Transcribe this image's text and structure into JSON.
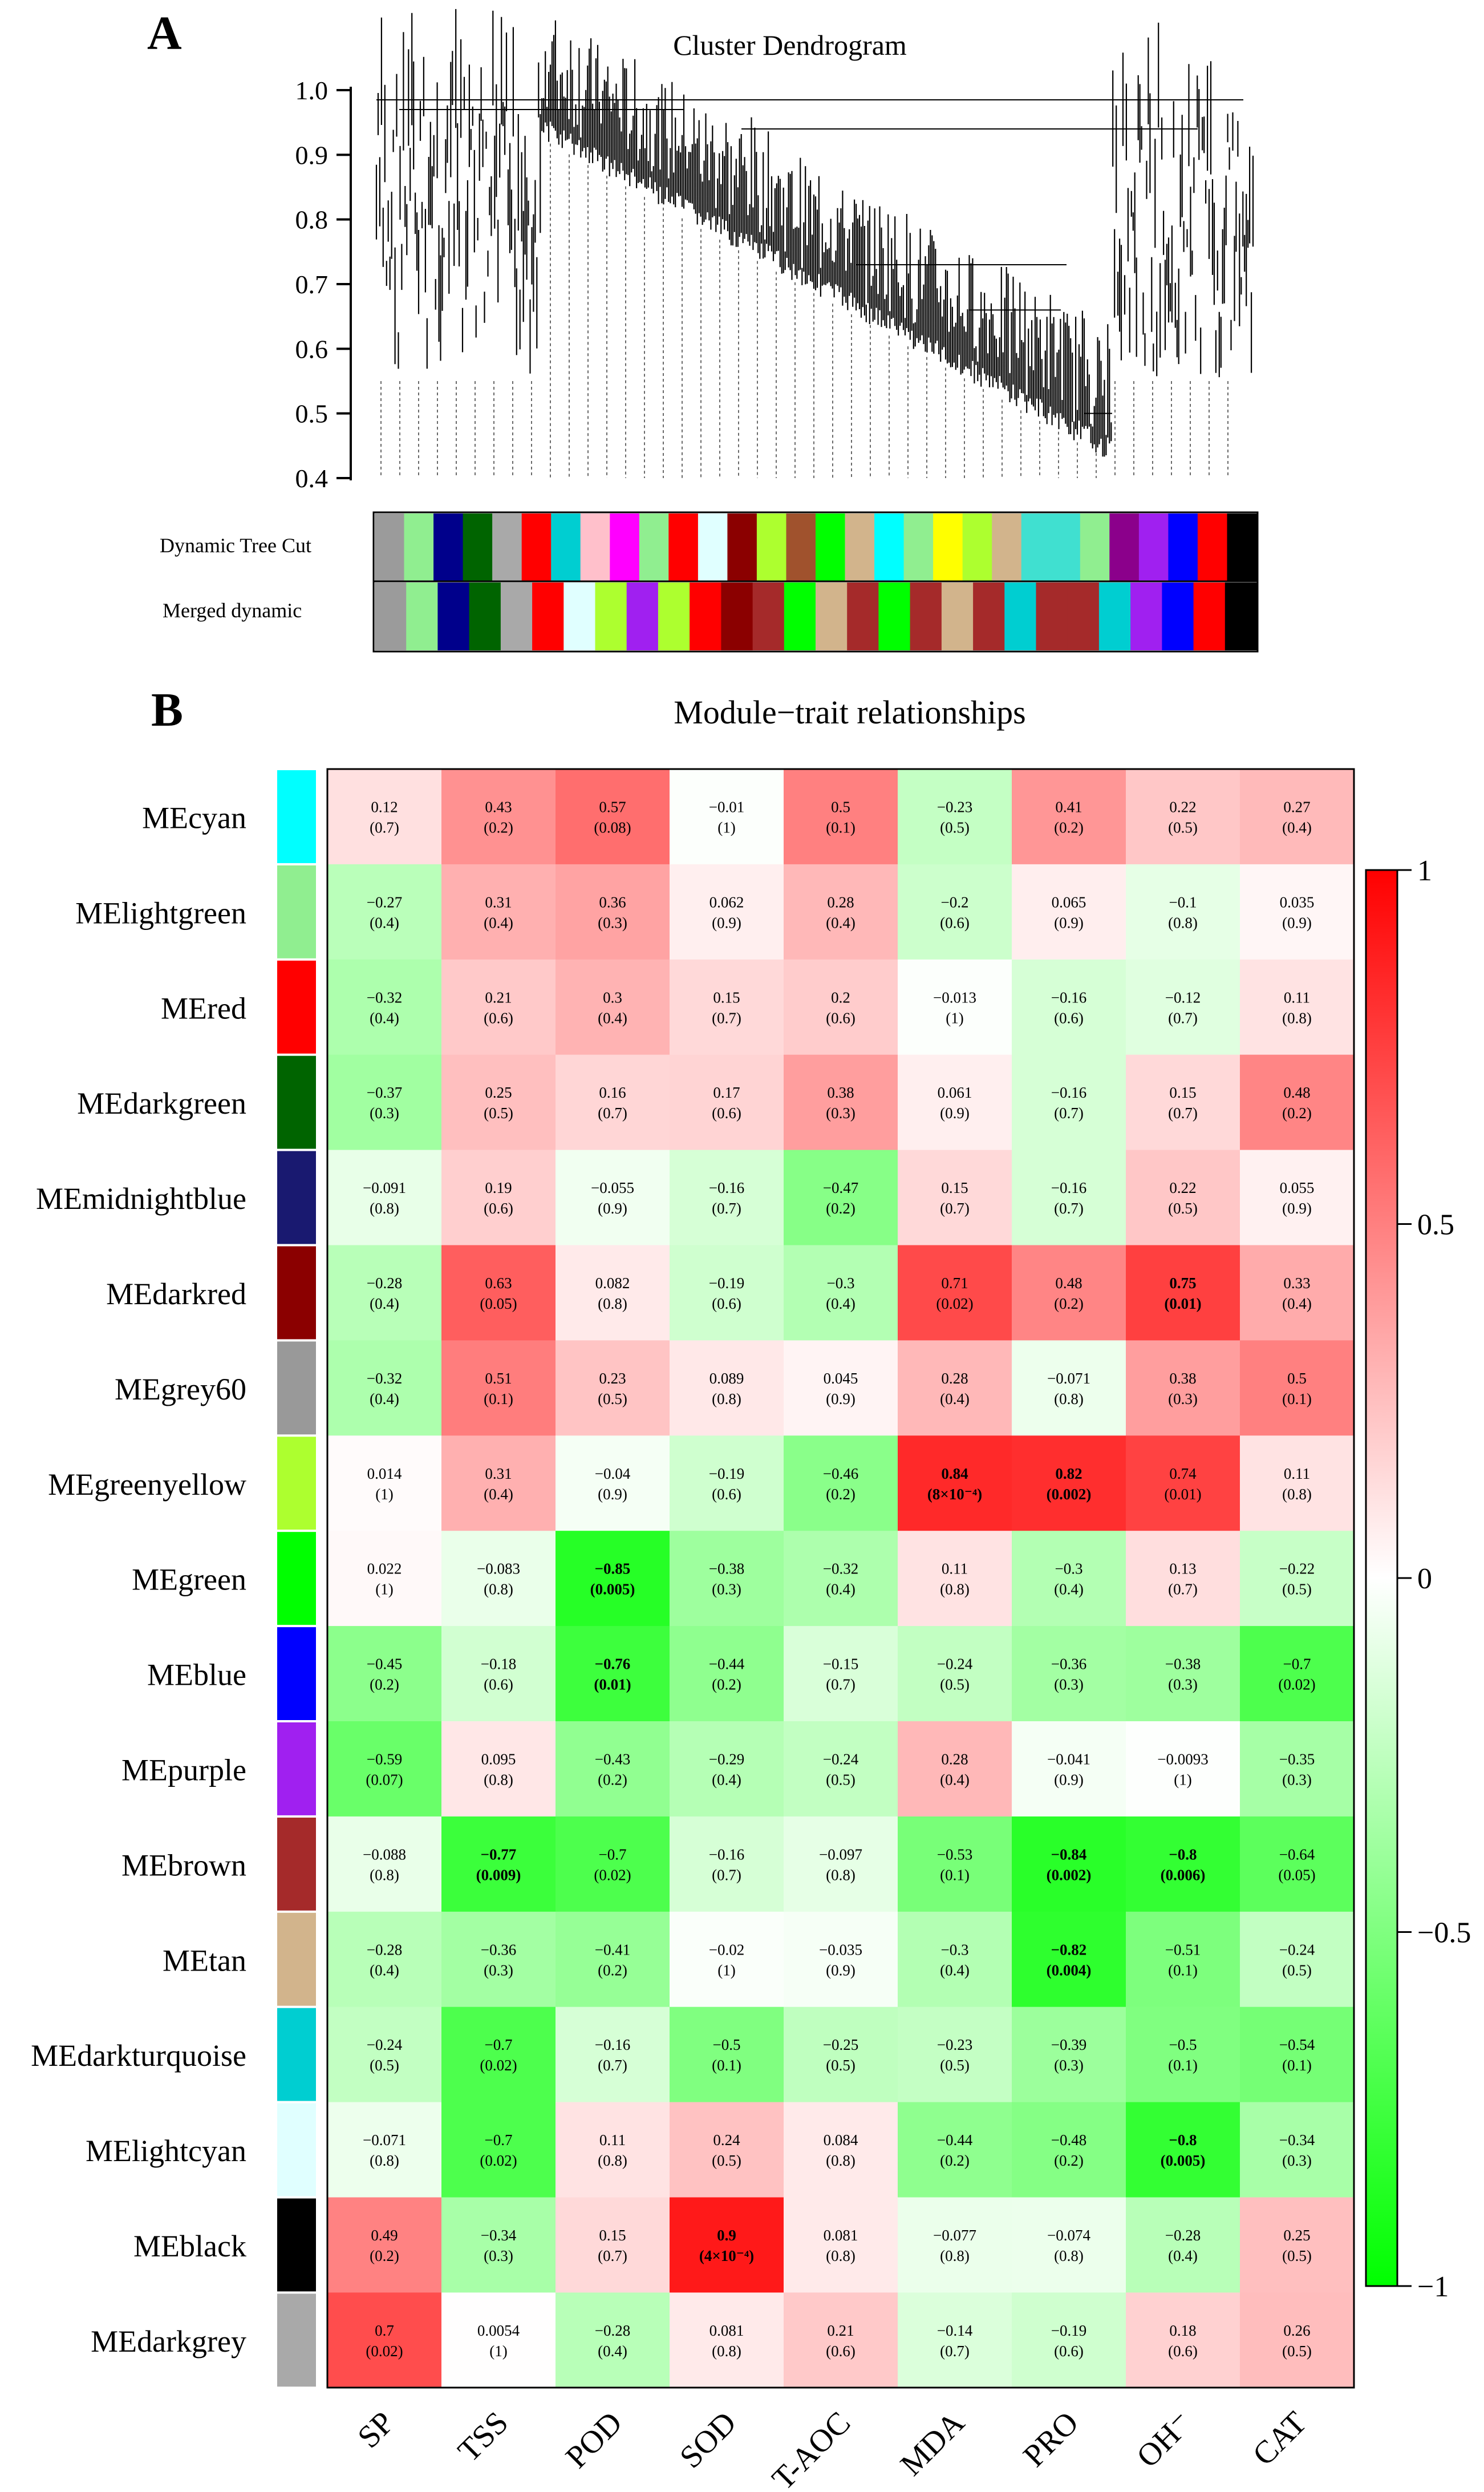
{
  "panel_a": {
    "panel_label": "A",
    "chart_data": {
      "type": "dendrogram",
      "title": "Cluster Dendrogram",
      "yticks": [
        "1.0",
        "0.9",
        "0.8",
        "0.7",
        "0.6",
        "0.5",
        "0.4"
      ],
      "ylim": [
        0.4,
        1.0
      ],
      "row_labels": [
        "Dynamic Tree Cut",
        "Merged dynamic"
      ],
      "dynamic_colors": [
        "#9b9b9b",
        "#90ee90",
        "#00008b",
        "#006400",
        "#a9a9a9",
        "#ff0000",
        "#00ced1",
        "#ffc0cb",
        "#ff00ff",
        "#90ee90",
        "#ff0000",
        "#e0ffff",
        "#8b0000",
        "#adff2f",
        "#a0522d",
        "#00ff00",
        "#d2b48c",
        "#00ffff",
        "#90ee90",
        "#ffff00",
        "#adff2f",
        "#d2b48c",
        "#40e0d0",
        "#40e0d0",
        "#90ee90",
        "#8b008b",
        "#a020f0",
        "#0000ff",
        "#ff0000",
        "#000000"
      ],
      "merged_colors": [
        "#9b9b9b",
        "#90ee90",
        "#00008b",
        "#006400",
        "#a9a9a9",
        "#ff0000",
        "#e0ffff",
        "#adff2f",
        "#a020f0",
        "#adff2f",
        "#ff0000",
        "#8b0000",
        "#a52a2a",
        "#00ff00",
        "#d2b48c",
        "#a52a2a",
        "#00ff00",
        "#a52a2a",
        "#d2b48c",
        "#a52a2a",
        "#00ced1",
        "#a52a2a",
        "#a52a2a",
        "#00ced1",
        "#a020f0",
        "#0000ff",
        "#ff0000",
        "#000000"
      ]
    }
  },
  "panel_b": {
    "panel_label": "B",
    "chart_data": {
      "type": "heatmap",
      "title": "Module−trait relationships",
      "columns": [
        "SP",
        "TSS",
        "POD",
        "SOD",
        "T-AOC",
        "MDA",
        "PRO",
        "OH⁻",
        "CAT"
      ],
      "rows": [
        {
          "name": "MEcyan",
          "color": "#00ffff",
          "cor": [
            "0.12",
            "0.43",
            "0.57",
            "−0.01",
            "0.5",
            "−0.23",
            "0.41",
            "0.22",
            "0.27"
          ],
          "p": [
            "(0.7)",
            "(0.2)",
            "(0.08)",
            "(1)",
            "(0.1)",
            "(0.5)",
            "(0.2)",
            "(0.5)",
            "(0.4)"
          ]
        },
        {
          "name": "MElightgreen",
          "color": "#90ee90",
          "cor": [
            "−0.27",
            "0.31",
            "0.36",
            "0.062",
            "0.28",
            "−0.2",
            "0.065",
            "−0.1",
            "0.035"
          ],
          "p": [
            "(0.4)",
            "(0.4)",
            "(0.3)",
            "(0.9)",
            "(0.4)",
            "(0.6)",
            "(0.9)",
            "(0.8)",
            "(0.9)"
          ]
        },
        {
          "name": "MEred",
          "color": "#ff0000",
          "cor": [
            "−0.32",
            "0.21",
            "0.3",
            "0.15",
            "0.2",
            "−0.013",
            "−0.16",
            "−0.12",
            "0.11"
          ],
          "p": [
            "(0.4)",
            "(0.6)",
            "(0.4)",
            "(0.7)",
            "(0.6)",
            "(1)",
            "(0.6)",
            "(0.7)",
            "(0.8)"
          ]
        },
        {
          "name": "MEdarkgreen",
          "color": "#006400",
          "cor": [
            "−0.37",
            "0.25",
            "0.16",
            "0.17",
            "0.38",
            "0.061",
            "−0.16",
            "0.15",
            "0.48"
          ],
          "p": [
            "(0.3)",
            "(0.5)",
            "(0.7)",
            "(0.6)",
            "(0.3)",
            "(0.9)",
            "(0.7)",
            "(0.7)",
            "(0.2)"
          ]
        },
        {
          "name": "MEmidnightblue",
          "color": "#191970",
          "cor": [
            "−0.091",
            "0.19",
            "−0.055",
            "−0.16",
            "−0.47",
            "0.15",
            "−0.16",
            "0.22",
            "0.055"
          ],
          "p": [
            "(0.8)",
            "(0.6)",
            "(0.9)",
            "(0.7)",
            "(0.2)",
            "(0.7)",
            "(0.7)",
            "(0.5)",
            "(0.9)"
          ]
        },
        {
          "name": "MEdarkred",
          "color": "#8b0000",
          "cor": [
            "−0.28",
            "0.63",
            "0.082",
            "−0.19",
            "−0.3",
            "0.71",
            "0.48",
            "0.75",
            "0.33"
          ],
          "p": [
            "(0.4)",
            "(0.05)",
            "(0.8)",
            "(0.6)",
            "(0.4)",
            "(0.02)",
            "(0.2)",
            "(0.01)",
            "(0.4)"
          ]
        },
        {
          "name": "MEgrey60",
          "color": "#999999",
          "cor": [
            "−0.32",
            "0.51",
            "0.23",
            "0.089",
            "0.045",
            "0.28",
            "−0.071",
            "0.38",
            "0.5"
          ],
          "p": [
            "(0.4)",
            "(0.1)",
            "(0.5)",
            "(0.8)",
            "(0.9)",
            "(0.4)",
            "(0.8)",
            "(0.3)",
            "(0.1)"
          ]
        },
        {
          "name": "MEgreenyellow",
          "color": "#adff2f",
          "cor": [
            "0.014",
            "0.31",
            "−0.04",
            "−0.19",
            "−0.46",
            "0.84",
            "0.82",
            "0.74",
            "0.11"
          ],
          "p": [
            "(1)",
            "(0.4)",
            "(0.9)",
            "(0.6)",
            "(0.2)",
            "(8×10⁻⁴)",
            "(0.002)",
            "(0.01)",
            "(0.8)"
          ]
        },
        {
          "name": "MEgreen",
          "color": "#00ff00",
          "cor": [
            "0.022",
            "−0.083",
            "−0.85",
            "−0.38",
            "−0.32",
            "0.11",
            "−0.3",
            "0.13",
            "−0.22"
          ],
          "p": [
            "(1)",
            "(0.8)",
            "(0.005)",
            "(0.3)",
            "(0.4)",
            "(0.8)",
            "(0.4)",
            "(0.7)",
            "(0.5)"
          ]
        },
        {
          "name": "MEblue",
          "color": "#0000ff",
          "cor": [
            "−0.45",
            "−0.18",
            "−0.76",
            "−0.44",
            "−0.15",
            "−0.24",
            "−0.36",
            "−0.38",
            "−0.7"
          ],
          "p": [
            "(0.2)",
            "(0.6)",
            "(0.01)",
            "(0.2)",
            "(0.7)",
            "(0.5)",
            "(0.3)",
            "(0.3)",
            "(0.02)"
          ]
        },
        {
          "name": "MEpurple",
          "color": "#a020f0",
          "cor": [
            "−0.59",
            "0.095",
            "−0.43",
            "−0.29",
            "−0.24",
            "0.28",
            "−0.041",
            "−0.0093",
            "−0.35"
          ],
          "p": [
            "(0.07)",
            "(0.8)",
            "(0.2)",
            "(0.4)",
            "(0.5)",
            "(0.4)",
            "(0.9)",
            "(1)",
            "(0.3)"
          ]
        },
        {
          "name": "MEbrown",
          "color": "#a52a2a",
          "cor": [
            "−0.088",
            "−0.77",
            "−0.7",
            "−0.16",
            "−0.097",
            "−0.53",
            "−0.84",
            "−0.8",
            "−0.64"
          ],
          "p": [
            "(0.8)",
            "(0.009)",
            "(0.02)",
            "(0.7)",
            "(0.8)",
            "(0.1)",
            "(0.002)",
            "(0.006)",
            "(0.05)"
          ]
        },
        {
          "name": "MEtan",
          "color": "#d2b48c",
          "cor": [
            "−0.28",
            "−0.36",
            "−0.41",
            "−0.02",
            "−0.035",
            "−0.3",
            "−0.82",
            "−0.51",
            "−0.24"
          ],
          "p": [
            "(0.4)",
            "(0.3)",
            "(0.2)",
            "(1)",
            "(0.9)",
            "(0.4)",
            "(0.004)",
            "(0.1)",
            "(0.5)"
          ]
        },
        {
          "name": "MEdarkturquoise",
          "color": "#00ced1",
          "cor": [
            "−0.24",
            "−0.7",
            "−0.16",
            "−0.5",
            "−0.25",
            "−0.23",
            "−0.39",
            "−0.5",
            "−0.54"
          ],
          "p": [
            "(0.5)",
            "(0.02)",
            "(0.7)",
            "(0.1)",
            "(0.5)",
            "(0.5)",
            "(0.3)",
            "(0.1)",
            "(0.1)"
          ]
        },
        {
          "name": "MElightcyan",
          "color": "#e0ffff",
          "cor": [
            "−0.071",
            "−0.7",
            "0.11",
            "0.24",
            "0.084",
            "−0.44",
            "−0.48",
            "−0.8",
            "−0.34"
          ],
          "p": [
            "(0.8)",
            "(0.02)",
            "(0.8)",
            "(0.5)",
            "(0.8)",
            "(0.2)",
            "(0.2)",
            "(0.005)",
            "(0.3)"
          ]
        },
        {
          "name": "MEblack",
          "color": "#000000",
          "cor": [
            "0.49",
            "−0.34",
            "0.15",
            "0.9",
            "0.081",
            "−0.077",
            "−0.074",
            "−0.28",
            "0.25"
          ],
          "p": [
            "(0.2)",
            "(0.3)",
            "(0.7)",
            "(4×10⁻⁴)",
            "(0.8)",
            "(0.8)",
            "(0.8)",
            "(0.4)",
            "(0.5)"
          ]
        },
        {
          "name": "MEdarkgrey",
          "color": "#a9a9a9",
          "cor": [
            "0.7",
            "0.0054",
            "−0.28",
            "0.081",
            "0.21",
            "−0.14",
            "−0.19",
            "0.18",
            "0.26"
          ],
          "p": [
            "(0.02)",
            "(1)",
            "(0.4)",
            "(0.8)",
            "(0.6)",
            "(0.7)",
            "(0.6)",
            "(0.6)",
            "(0.5)"
          ]
        }
      ],
      "colorbar": {
        "ticks": [
          "1",
          "0.5",
          "0",
          "−0.5",
          "−1"
        ],
        "range": [
          -1,
          1
        ],
        "low": "#00ff00",
        "mid": "#ffffff",
        "high": "#ff0000"
      }
    }
  }
}
